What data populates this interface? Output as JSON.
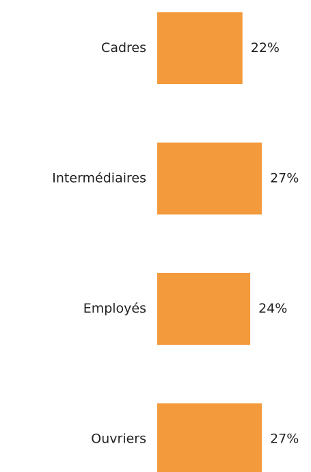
{
  "chart_data": {
    "type": "hbar",
    "categories": [
      "Cadres",
      "Intermédiaires",
      "Employés",
      "Ouvriers"
    ],
    "values": [
      22,
      27,
      24,
      27
    ],
    "value_labels": [
      "22%",
      "27%",
      "24%",
      "27%"
    ],
    "color": "#f39a3c"
  }
}
